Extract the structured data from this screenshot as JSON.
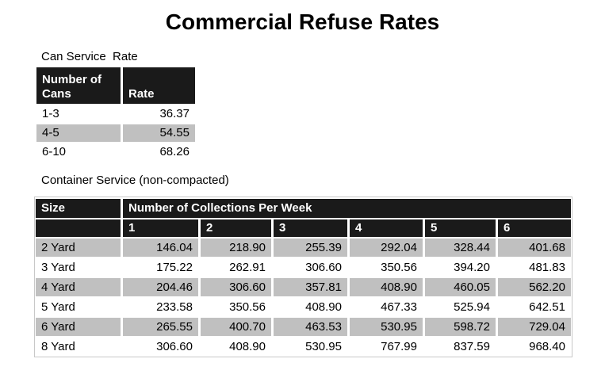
{
  "header": {
    "title": "Commercial Refuse Rates"
  },
  "can_service": {
    "caption": "Can Service  Rate",
    "columns": [
      "Number of Cans",
      "Rate"
    ],
    "rows": [
      [
        "1-3",
        "36.37"
      ],
      [
        "4-5",
        "54.55"
      ],
      [
        "6-10",
        "68.26"
      ]
    ]
  },
  "container_service": {
    "caption": "Container Service (non-compacted)",
    "columns": [
      "Size",
      "Number of Collections Per Week"
    ],
    "subcolumns": [
      "1",
      "2",
      "3",
      "4",
      "5",
      "6"
    ],
    "rows": [
      [
        "2 Yard",
        "146.04",
        "218.90",
        "255.39",
        "292.04",
        "328.44",
        "401.68"
      ],
      [
        "3 Yard",
        "175.22",
        "262.91",
        "306.60",
        "350.56",
        "394.20",
        "481.83"
      ],
      [
        "4 Yard",
        "204.46",
        "306.60",
        "357.81",
        "408.90",
        "460.05",
        "562.20"
      ],
      [
        "5 Yard",
        "233.58",
        "350.56",
        "408.90",
        "467.33",
        "525.94",
        "642.51"
      ],
      [
        "6 Yard",
        "265.55",
        "400.70",
        "463.53",
        "530.95",
        "598.72",
        "729.04"
      ],
      [
        "8 Yard",
        "306.60",
        "408.90",
        "530.95",
        "767.99",
        "837.59",
        "968.40"
      ]
    ]
  }
}
